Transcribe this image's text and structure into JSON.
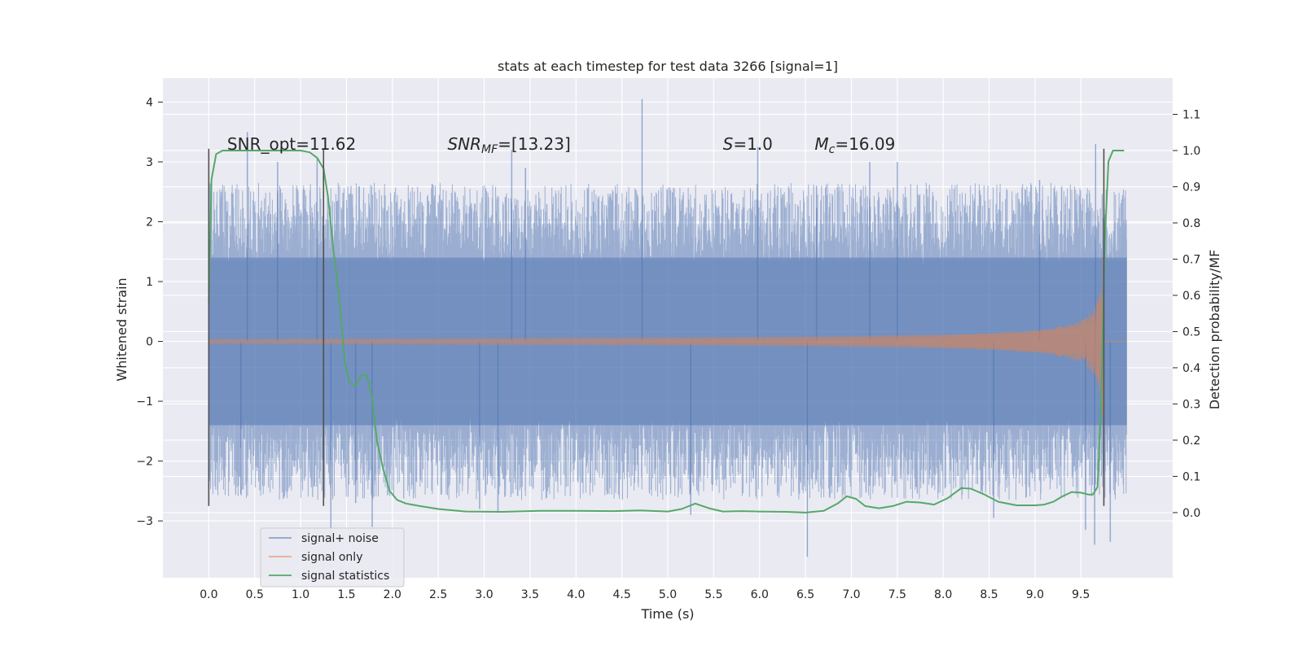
{
  "chart_data": {
    "type": "line",
    "title": "stats at each timestep for test data 3266 [signal=1]",
    "xlabel": "Time (s)",
    "ylabel": "Whitened strain",
    "y2label": "Detection probability/MF",
    "xlim": [
      -0.5,
      10.5
    ],
    "ylim": [
      -3.95,
      4.4
    ],
    "y2lim": [
      -0.18,
      1.2
    ],
    "x_ticks": [
      0.0,
      0.5,
      1.0,
      1.5,
      2.0,
      2.5,
      3.0,
      3.5,
      4.0,
      4.5,
      5.0,
      5.5,
      6.0,
      6.5,
      7.0,
      7.5,
      8.0,
      8.5,
      9.0,
      9.5
    ],
    "x_tick_labels": [
      "0.0",
      "0.5",
      "1.0",
      "1.5",
      "2.0",
      "2.5",
      "3.0",
      "3.5",
      "4.0",
      "4.5",
      "5.0",
      "5.5",
      "6.0",
      "6.5",
      "7.0",
      "7.5",
      "8.0",
      "8.5",
      "9.0",
      "9.5"
    ],
    "y_ticks": [
      -3,
      -2,
      -1,
      0,
      1,
      2,
      3,
      4
    ],
    "y_tick_labels": [
      "−3",
      "−2",
      "−1",
      "0",
      "1",
      "2",
      "3",
      "4"
    ],
    "y2_ticks": [
      0.0,
      0.1,
      0.2,
      0.3,
      0.4,
      0.5,
      0.6,
      0.7,
      0.8,
      0.9,
      1.0,
      1.1
    ],
    "y2_tick_labels": [
      "0.0",
      "0.1",
      "0.2",
      "0.3",
      "0.4",
      "0.5",
      "0.6",
      "0.7",
      "0.8",
      "0.9",
      "1.0",
      "1.1"
    ],
    "grid": true,
    "legend_position": "lower-left",
    "annotations": [
      {
        "text": "SNR_opt=11.62",
        "x": 0.2,
        "y": 3.3
      },
      {
        "text_main": "SNR",
        "text_sub": "MF",
        "text_rest": "=[13.23]",
        "x": 2.6,
        "y": 3.3
      },
      {
        "text_main": "S",
        "text_rest": "=1.0",
        "x": 5.6,
        "y": 3.3
      },
      {
        "text_main": "M",
        "text_sub": "c",
        "text_rest": "=16.09",
        "x": 6.6,
        "y": 3.3
      }
    ],
    "vertical_lines": [
      {
        "x": 0.0,
        "ymin": -2.75,
        "ymax": 3.22
      },
      {
        "x": 1.25,
        "ymin": -2.75,
        "ymax": 3.22
      },
      {
        "x": 9.75,
        "ymin": -2.75,
        "ymax": 3.22
      }
    ],
    "series": [
      {
        "name": "signal+ noise",
        "color": "#4c72b0",
        "opacity": 0.5,
        "axis": "left",
        "x_range": [
          0.0,
          10.0
        ],
        "noise_band": [
          -1.4,
          1.4
        ],
        "spikes": [
          {
            "x": 0.42,
            "y": 3.5
          },
          {
            "x": 0.75,
            "y": 3.0
          },
          {
            "x": 1.18,
            "y": 3.05
          },
          {
            "x": 1.33,
            "y": -3.3
          },
          {
            "x": 1.78,
            "y": -3.1
          },
          {
            "x": 1.6,
            "y": -2.7
          },
          {
            "x": 3.3,
            "y": 3.2
          },
          {
            "x": 3.45,
            "y": 2.9
          },
          {
            "x": 4.72,
            "y": 4.05
          },
          {
            "x": 5.25,
            "y": -2.9
          },
          {
            "x": 5.98,
            "y": 3.25
          },
          {
            "x": 6.52,
            "y": -3.6
          },
          {
            "x": 6.62,
            "y": 2.6
          },
          {
            "x": 7.2,
            "y": 3.0
          },
          {
            "x": 7.5,
            "y": 3.0
          },
          {
            "x": 8.55,
            "y": -2.95
          },
          {
            "x": 9.05,
            "y": 2.7
          },
          {
            "x": 9.55,
            "y": -3.15
          },
          {
            "x": 9.66,
            "y": 3.3
          },
          {
            "x": 9.65,
            "y": -3.4
          },
          {
            "x": 9.82,
            "y": -3.35
          },
          {
            "x": 2.95,
            "y": -2.8
          },
          {
            "x": 3.15,
            "y": -2.85
          },
          {
            "x": 0.35,
            "y": -2.55
          }
        ]
      },
      {
        "name": "signal only",
        "color": "#dd8452",
        "opacity": 0.5,
        "axis": "left",
        "x_range": [
          0.0,
          10.0
        ],
        "chirp_end": 9.75,
        "chirp_peak_amplitude": 1.7
      },
      {
        "name": "signal statistics",
        "color": "#55a868",
        "axis": "right",
        "x": [
          0.0,
          0.03,
          0.08,
          0.15,
          0.25,
          0.4,
          0.6,
          0.8,
          1.0,
          1.1,
          1.18,
          1.25,
          1.3,
          1.36,
          1.42,
          1.48,
          1.53,
          1.6,
          1.66,
          1.72,
          1.78,
          1.83,
          1.9,
          1.97,
          2.05,
          2.15,
          2.3,
          2.5,
          2.8,
          3.2,
          3.6,
          4.0,
          4.4,
          4.7,
          5.0,
          5.15,
          5.3,
          5.45,
          5.6,
          5.8,
          6.0,
          6.3,
          6.5,
          6.7,
          6.85,
          6.95,
          7.05,
          7.15,
          7.3,
          7.45,
          7.6,
          7.75,
          7.9,
          8.05,
          8.2,
          8.3,
          8.45,
          8.6,
          8.8,
          9.0,
          9.1,
          9.2,
          9.3,
          9.4,
          9.5,
          9.58,
          9.63,
          9.68,
          9.72,
          9.76,
          9.8,
          9.85,
          9.9,
          9.97
        ],
        "y": [
          0.58,
          0.92,
          0.99,
          1.0,
          1.0,
          1.0,
          1.0,
          1.0,
          1.0,
          0.995,
          0.98,
          0.95,
          0.87,
          0.72,
          0.6,
          0.42,
          0.36,
          0.35,
          0.38,
          0.38,
          0.32,
          0.2,
          0.12,
          0.06,
          0.035,
          0.025,
          0.018,
          0.01,
          0.003,
          0.002,
          0.005,
          0.005,
          0.004,
          0.006,
          0.003,
          0.01,
          0.025,
          0.012,
          0.003,
          0.004,
          0.003,
          0.002,
          0.0,
          0.005,
          0.025,
          0.045,
          0.038,
          0.018,
          0.012,
          0.018,
          0.03,
          0.028,
          0.022,
          0.04,
          0.068,
          0.066,
          0.05,
          0.03,
          0.02,
          0.02,
          0.022,
          0.03,
          0.045,
          0.057,
          0.055,
          0.05,
          0.05,
          0.07,
          0.3,
          0.75,
          0.97,
          1.0,
          1.0,
          1.0
        ]
      }
    ]
  }
}
